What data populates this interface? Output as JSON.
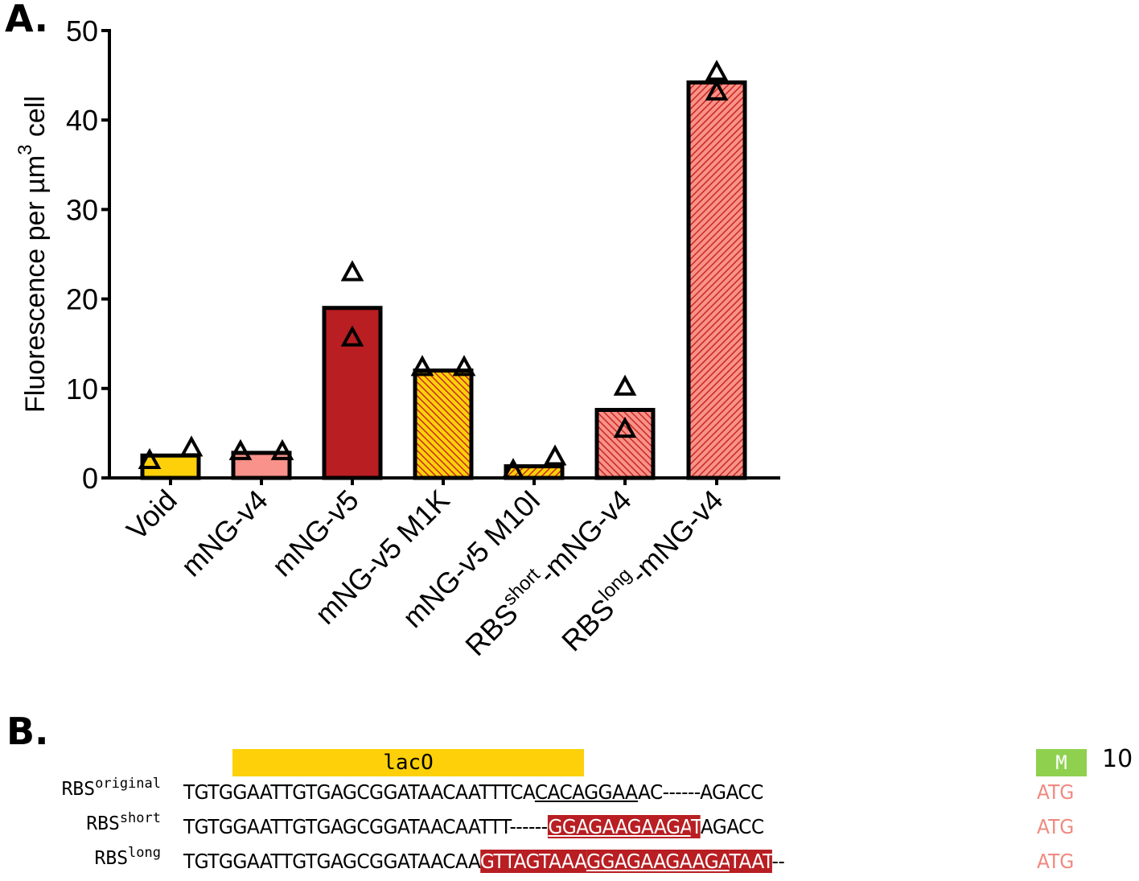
{
  "panels": {
    "a_label": "A.",
    "b_label": "B."
  },
  "chart_data": {
    "type": "bar",
    "title": "",
    "xlabel": "",
    "ylabel": "Fluorescence per µm³ cell",
    "ylabel_parts": {
      "main": "Fluorescence per µm",
      "sup": "3",
      "tail": " cell"
    },
    "ylim": [
      0,
      50
    ],
    "yticks": [
      0,
      10,
      20,
      30,
      40,
      50
    ],
    "grid": false,
    "legend": null,
    "categories": [
      "Void",
      "mNG-v4",
      "mNG-v5",
      "mNG-v5 M1K",
      "mNG-v5 M10I",
      "RBS^short-mNG-v4",
      "RBS^long-mNG-v4"
    ],
    "category_labels": [
      {
        "main": "Void",
        "sup": "",
        "tail": ""
      },
      {
        "main": "mNG-v4",
        "sup": "",
        "tail": ""
      },
      {
        "main": "mNG-v5",
        "sup": "",
        "tail": ""
      },
      {
        "main": "mNG-v5 M1K",
        "sup": "",
        "tail": ""
      },
      {
        "main": "mNG-v5 M10I",
        "sup": "",
        "tail": ""
      },
      {
        "main": "RBS",
        "sup": "short",
        "tail": "-mNG-v4"
      },
      {
        "main": "RBS",
        "sup": "long",
        "tail": "-mNG-v4"
      }
    ],
    "values": [
      2.5,
      2.8,
      19.0,
      12.0,
      1.3,
      7.6,
      44.2
    ],
    "points": [
      [
        1.8,
        3.2
      ],
      [
        2.8,
        2.8
      ],
      [
        15.5,
        22.8
      ],
      [
        12.2,
        12.2
      ],
      [
        0.7,
        2.2
      ],
      [
        5.3,
        10.0
      ],
      [
        43.0,
        45.2
      ]
    ],
    "marker": "open-triangle",
    "bar_styles": [
      {
        "fill": "#fdd00a",
        "hatch": null
      },
      {
        "fill": "#f8928a",
        "hatch": null
      },
      {
        "fill": "#b81e22",
        "hatch": null
      },
      {
        "fill": "#fdd00a",
        "hatch": "#c8281e",
        "hatch_dir": "back"
      },
      {
        "fill": "#fdd00a",
        "hatch": "#c8281e",
        "hatch_dir": "fwd"
      },
      {
        "fill": "#f8928a",
        "hatch": "#c8281e",
        "hatch_dir": "back"
      },
      {
        "fill": "#f8928a",
        "hatch": "#c8281e",
        "hatch_dir": "fwd"
      }
    ]
  },
  "alignment": {
    "laco_label": "lacO",
    "m_label": "M",
    "position_label": "10",
    "start_codon": "ATG",
    "rows": [
      {
        "label": "RBS",
        "label_sup": "original",
        "segments": [
          {
            "text": "TGTGGAATTGTGAGCGGATAACAATTTCA",
            "style": "plain"
          },
          {
            "text": "CACAGGAA",
            "style": "underline"
          },
          {
            "text": "AC------AGACC",
            "style": "plain"
          }
        ]
      },
      {
        "label": "RBS",
        "label_sup": "short",
        "segments": [
          {
            "text": "TGTGGAATTGTGAGCGGATAACAATTT------",
            "style": "plain"
          },
          {
            "text": "GGAGAAGAAGA",
            "style": "highlight-underline"
          },
          {
            "text": "T",
            "style": "highlight"
          },
          {
            "text": "AGACC",
            "style": "plain"
          }
        ]
      },
      {
        "label": "RBS",
        "label_sup": "long",
        "segments": [
          {
            "text": "TGTGGAATTGTGAGCGGATAACAA",
            "style": "plain"
          },
          {
            "text": "GTTAGTAAA",
            "style": "highlight"
          },
          {
            "text": "GGAGAAGAAGA",
            "style": "highlight-underline"
          },
          {
            "text": "TAAT",
            "style": "highlight"
          },
          {
            "text": "--",
            "style": "plain"
          }
        ]
      }
    ]
  }
}
